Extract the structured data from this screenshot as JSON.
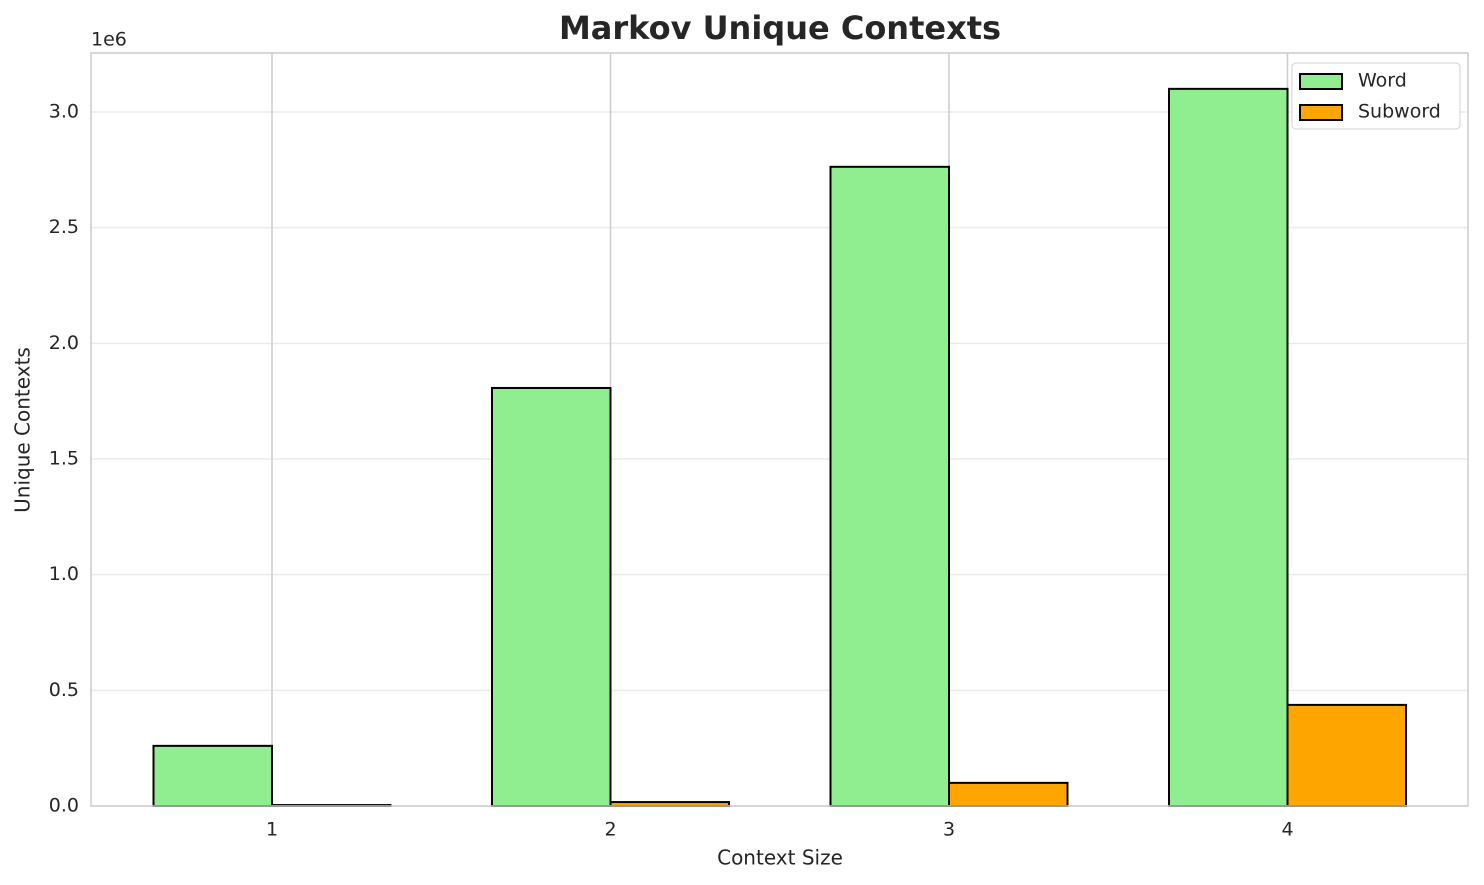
{
  "chart_data": {
    "type": "bar",
    "title": "Markov Unique Contexts",
    "x_label": "Context Size",
    "y_label": "Unique Contexts",
    "y_offset_label": "1e6",
    "categories": [
      "1",
      "2",
      "3",
      "4"
    ],
    "series": [
      {
        "name": "Word",
        "color": "#90ee90",
        "values": [
          260000,
          1807000,
          2763000,
          3100000
        ]
      },
      {
        "name": "Subword",
        "color": "#ffa500",
        "values": [
          4000,
          17000,
          100000,
          437000
        ]
      }
    ],
    "ylim": [
      0,
      3255000
    ],
    "yticks": [
      {
        "value": 0,
        "label": "0.0"
      },
      {
        "value": 500000,
        "label": "0.5"
      },
      {
        "value": 1000000,
        "label": "1.0"
      },
      {
        "value": 1500000,
        "label": "1.5"
      },
      {
        "value": 2000000,
        "label": "2.0"
      },
      {
        "value": 2500000,
        "label": "2.5"
      },
      {
        "value": 3000000,
        "label": "3.0"
      }
    ],
    "grid": true,
    "legend": "upper right"
  }
}
